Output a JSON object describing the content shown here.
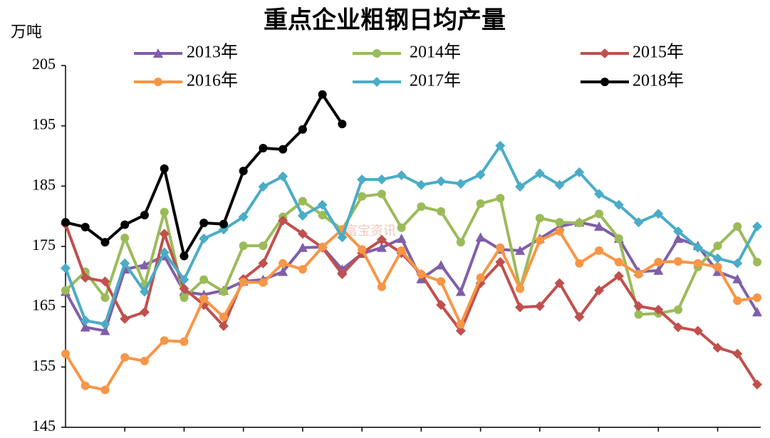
{
  "chart_data": {
    "type": "line",
    "title": "重点企业粗钢日均产量",
    "y_label": "万吨",
    "watermark": "富宝资讯",
    "categories": [
      null,
      null,
      null,
      null,
      null,
      null,
      null,
      null,
      null,
      null,
      null,
      null,
      null,
      null,
      null,
      null,
      null,
      null,
      null,
      null,
      null,
      null,
      null,
      null,
      null,
      null,
      null,
      null,
      null,
      null,
      null,
      null,
      null,
      null,
      null,
      null
    ],
    "ylim": [
      145,
      205
    ],
    "yticks": [
      145,
      155,
      165,
      175,
      185,
      195,
      205
    ],
    "grid": false,
    "series": [
      {
        "name": "2013年",
        "color": "#7f5fa8",
        "marker": "triangle",
        "values": [
          167.5,
          161.6,
          161.0,
          171.2,
          171.9,
          173.4,
          167.5,
          167.0,
          167.7,
          169.2,
          169.5,
          170.8,
          174.8,
          174.9,
          171.2,
          173.8,
          174.8,
          176.3,
          169.6,
          171.9,
          167.5,
          176.5,
          174.5,
          174.3,
          176.3,
          178.3,
          179.0,
          178.3,
          176.3,
          170.8,
          171.0,
          176.3,
          175.1,
          170.8,
          169.6,
          164.1
        ]
      },
      {
        "name": "2014年",
        "color": "#9bbb59",
        "marker": "circle",
        "values": [
          167.7,
          170.8,
          166.5,
          176.4,
          168.6,
          180.7,
          166.5,
          169.5,
          167.5,
          175.1,
          175.1,
          179.9,
          182.5,
          180.2,
          177.8,
          183.3,
          183.7,
          178.1,
          181.6,
          180.8,
          175.7,
          182.1,
          183.0,
          168.0,
          179.7,
          179.0,
          178.9,
          180.4,
          176.3,
          163.7,
          163.9,
          164.5,
          171.6,
          175.1,
          178.3,
          172.4
        ]
      },
      {
        "name": "2015年",
        "color": "#c0504d",
        "marker": "diamond",
        "values": [
          178.7,
          169.8,
          169.2,
          163.0,
          164.1,
          177.1,
          168.0,
          165.3,
          161.8,
          169.6,
          172.2,
          179.3,
          177.1,
          174.8,
          170.4,
          173.9,
          176.1,
          173.9,
          170.4,
          165.3,
          161.0,
          168.9,
          172.4,
          164.9,
          165.1,
          168.9,
          163.3,
          167.7,
          170.1,
          165.1,
          164.5,
          161.6,
          161.0,
          158.2,
          157.2,
          152.1
        ]
      },
      {
        "name": "2016年",
        "color": "#f79646",
        "marker": "circle",
        "values": [
          157.2,
          151.9,
          151.2,
          156.6,
          156.0,
          159.4,
          159.2,
          166.3,
          163.3,
          169.1,
          169.0,
          172.2,
          171.2,
          174.9,
          177.8,
          174.5,
          168.3,
          174.3,
          170.4,
          169.2,
          162.1,
          169.8,
          174.8,
          168.0,
          176.0,
          177.5,
          172.2,
          174.3,
          172.4,
          170.4,
          172.4,
          172.5,
          172.2,
          171.6,
          166.0,
          166.5
        ]
      },
      {
        "name": "2017年",
        "color": "#4bacc6",
        "marker": "diamond",
        "values": [
          171.4,
          162.7,
          162.1,
          172.2,
          167.5,
          174.0,
          169.5,
          176.3,
          177.8,
          179.9,
          184.9,
          186.6,
          180.1,
          181.9,
          176.5,
          186.1,
          186.1,
          186.8,
          185.2,
          185.8,
          185.4,
          186.9,
          191.7,
          184.9,
          187.1,
          185.2,
          187.3,
          183.7,
          181.9,
          179.0,
          180.4,
          177.5,
          174.8,
          173.0,
          172.2,
          178.3
        ]
      },
      {
        "name": "2018年",
        "color": "#000000",
        "marker": "circle",
        "values": [
          179.0,
          178.2,
          175.7,
          178.6,
          180.2,
          187.9,
          173.4,
          178.9,
          178.7,
          187.5,
          191.3,
          191.1,
          194.4,
          200.2,
          195.3,
          null,
          null,
          null,
          null,
          null,
          null,
          null,
          null,
          null,
          null,
          null,
          null,
          null,
          null,
          null,
          null,
          null,
          null,
          null,
          null,
          null
        ]
      }
    ]
  }
}
